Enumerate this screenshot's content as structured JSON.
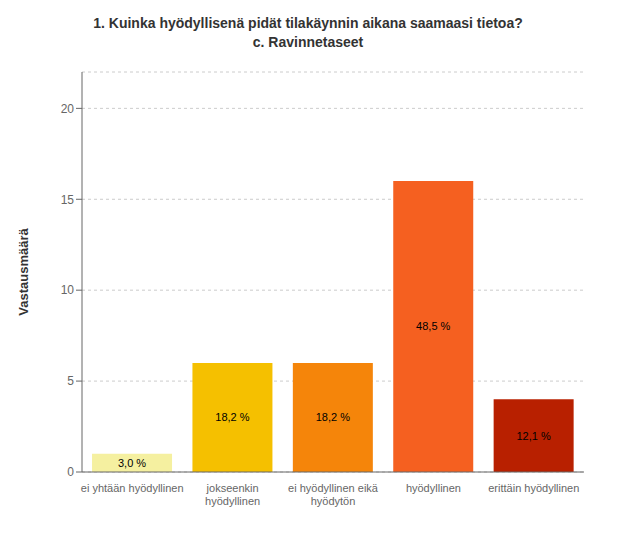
{
  "chart_data": {
    "type": "bar",
    "title": "1. Kuinka hyödyllisenä pidät tilakäynnin aikana saamaasi tietoa?",
    "subtitle": "c. Ravinnetaseet",
    "categories": [
      "ei yhtään hyödyllinen",
      "jokseenkin\nhyödyllinen",
      "ei hyödyllinen eikä\nhyödytön",
      "hyödyllinen",
      "erittäin hyödyllinen"
    ],
    "values": [
      1,
      6,
      6,
      16,
      4
    ],
    "percentages": [
      {
        "value": 3.0,
        "label": "3,0 %"
      },
      {
        "value": 18.2,
        "label": "18,2 %"
      },
      {
        "value": 18.2,
        "label": "18,2 %"
      },
      {
        "value": 48.5,
        "label": "48,5 %"
      },
      {
        "value": 12.1,
        "label": "12,1 %"
      }
    ],
    "colors": [
      "#f5f0a0",
      "#f5c000",
      "#f5850a",
      "#f56020",
      "#b82000"
    ],
    "ylabel": "Vastausmäärä",
    "ylim": [
      0,
      22
    ],
    "yticks": [
      0,
      5,
      10,
      15,
      20
    ],
    "grid": true
  }
}
